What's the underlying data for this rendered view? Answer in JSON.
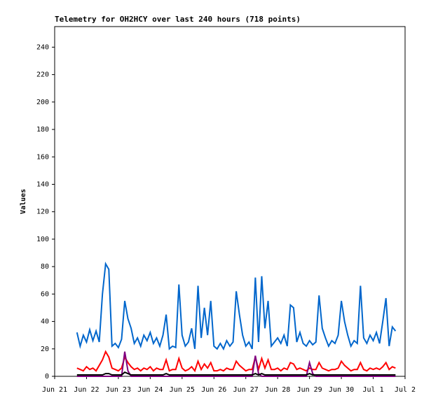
{
  "chart_data": {
    "type": "line",
    "title": "Telemetry for OH2HCY over last 240 hours (718 points)",
    "y_label": "Values",
    "x": [
      0.7,
      0.8,
      0.9,
      1.0,
      1.1,
      1.2,
      1.3,
      1.4,
      1.5,
      1.6,
      1.7,
      1.8,
      1.9,
      2.0,
      2.1,
      2.2,
      2.3,
      2.4,
      2.5,
      2.6,
      2.7,
      2.8,
      2.9,
      3.0,
      3.1,
      3.2,
      3.3,
      3.4,
      3.5,
      3.6,
      3.7,
      3.8,
      3.9,
      4.0,
      4.1,
      4.2,
      4.3,
      4.4,
      4.5,
      4.6,
      4.7,
      4.8,
      4.9,
      5.0,
      5.1,
      5.2,
      5.3,
      5.4,
      5.5,
      5.6,
      5.7,
      5.8,
      5.9,
      6.0,
      6.1,
      6.2,
      6.3,
      6.4,
      6.5,
      6.6,
      6.7,
      6.8,
      6.9,
      7.0,
      7.1,
      7.2,
      7.3,
      7.4,
      7.5,
      7.6,
      7.7,
      7.8,
      7.9,
      8.0,
      8.1,
      8.2,
      8.3,
      8.4,
      8.5,
      8.6,
      8.7,
      8.8,
      8.9,
      9.0,
      9.1,
      9.2,
      9.3,
      9.4,
      9.5,
      9.6,
      9.7,
      9.8,
      9.9,
      10.0,
      10.1,
      10.2,
      10.3,
      10.4,
      10.5,
      10.6,
      10.7
    ],
    "series": [
      {
        "color": "#0066cc",
        "values": [
          32,
          22,
          30,
          25,
          34,
          26,
          33,
          25,
          60,
          82,
          78,
          22,
          24,
          21,
          27,
          55,
          42,
          35,
          24,
          28,
          22,
          30,
          26,
          32,
          24,
          28,
          22,
          30,
          45,
          20,
          22,
          21,
          67,
          30,
          22,
          25,
          35,
          20,
          66,
          28,
          50,
          30,
          55,
          22,
          20,
          24,
          20,
          26,
          22,
          25,
          62,
          45,
          30,
          22,
          25,
          20,
          72,
          25,
          73,
          35,
          55,
          22,
          25,
          28,
          24,
          30,
          22,
          52,
          50,
          25,
          32,
          24,
          22,
          26,
          23,
          25,
          59,
          35,
          28,
          22,
          26,
          24,
          30,
          55,
          40,
          30,
          22,
          26,
          24,
          66,
          28,
          24,
          30,
          26,
          32,
          24,
          40,
          57,
          22,
          36,
          33
        ]
      },
      {
        "color": "#ff0000",
        "values": [
          6,
          5,
          4,
          7,
          5,
          6,
          4,
          8,
          12,
          18,
          14,
          6,
          5,
          4,
          6,
          14,
          10,
          7,
          5,
          6,
          4,
          6,
          5,
          7,
          4,
          6,
          5,
          5,
          12,
          4,
          5,
          5,
          13,
          6,
          4,
          5,
          7,
          4,
          11,
          5,
          9,
          6,
          10,
          4,
          4,
          5,
          4,
          6,
          5,
          5,
          11,
          8,
          6,
          4,
          5,
          5,
          14,
          5,
          13,
          6,
          12,
          5,
          5,
          6,
          4,
          6,
          5,
          10,
          9,
          5,
          6,
          5,
          4,
          6,
          5,
          5,
          10,
          6,
          5,
          4,
          5,
          5,
          6,
          11,
          8,
          6,
          4,
          5,
          5,
          10,
          5,
          4,
          6,
          5,
          6,
          5,
          7,
          10,
          5,
          7,
          6
        ]
      },
      {
        "color": "#800080",
        "values": [
          0,
          0,
          0,
          0,
          0,
          0,
          0,
          0,
          0,
          0,
          0,
          0,
          0,
          0,
          0,
          18,
          4,
          0,
          0,
          0,
          0,
          0,
          0,
          0,
          0,
          0,
          0,
          0,
          0,
          0,
          0,
          0,
          0,
          0,
          0,
          0,
          0,
          0,
          0,
          0,
          0,
          0,
          0,
          0,
          0,
          0,
          0,
          0,
          0,
          0,
          0,
          0,
          0,
          0,
          0,
          0,
          15,
          2,
          0,
          0,
          0,
          0,
          0,
          0,
          0,
          0,
          0,
          0,
          0,
          0,
          0,
          0,
          0,
          10,
          2,
          0,
          0,
          0,
          0,
          0,
          0,
          0,
          0,
          0,
          0,
          0,
          0,
          0,
          0,
          0,
          0,
          0,
          0,
          0,
          0,
          0,
          0,
          0,
          0,
          0,
          0
        ]
      },
      {
        "color": "#000000",
        "values": [
          1,
          1,
          1,
          1,
          1,
          1,
          1,
          1,
          1,
          2,
          2,
          1,
          1,
          1,
          1,
          3,
          2,
          1,
          1,
          1,
          1,
          1,
          1,
          1,
          1,
          1,
          1,
          1,
          2,
          1,
          1,
          1,
          1,
          1,
          1,
          1,
          1,
          1,
          1,
          1,
          1,
          1,
          1,
          1,
          1,
          1,
          1,
          1,
          1,
          1,
          1,
          1,
          1,
          1,
          1,
          1,
          2,
          1,
          2,
          1,
          1,
          1,
          1,
          1,
          1,
          1,
          1,
          1,
          1,
          1,
          1,
          1,
          1,
          2,
          1,
          1,
          1,
          1,
          1,
          1,
          1,
          1,
          1,
          1,
          1,
          1,
          1,
          1,
          1,
          1,
          1,
          1,
          1,
          1,
          1,
          1,
          1,
          1,
          1,
          1,
          1
        ]
      }
    ],
    "xlim": [
      0,
      11
    ],
    "xticks": [
      {
        "value": 0,
        "label": "Jun 21"
      },
      {
        "value": 1,
        "label": "Jun 22"
      },
      {
        "value": 2,
        "label": "Jun 23"
      },
      {
        "value": 3,
        "label": "Jun 24"
      },
      {
        "value": 4,
        "label": "Jun 25"
      },
      {
        "value": 5,
        "label": "Jun 26"
      },
      {
        "value": 6,
        "label": "Jun 27"
      },
      {
        "value": 7,
        "label": "Jun 28"
      },
      {
        "value": 8,
        "label": "Jun 29"
      },
      {
        "value": 9,
        "label": "Jun 30"
      },
      {
        "value": 10,
        "label": "Jul 1"
      },
      {
        "value": 11,
        "label": "Jul 2"
      }
    ],
    "ylim": [
      0,
      255
    ],
    "yticks": [
      0,
      20,
      40,
      60,
      80,
      100,
      120,
      140,
      160,
      180,
      200,
      220,
      240
    ]
  }
}
